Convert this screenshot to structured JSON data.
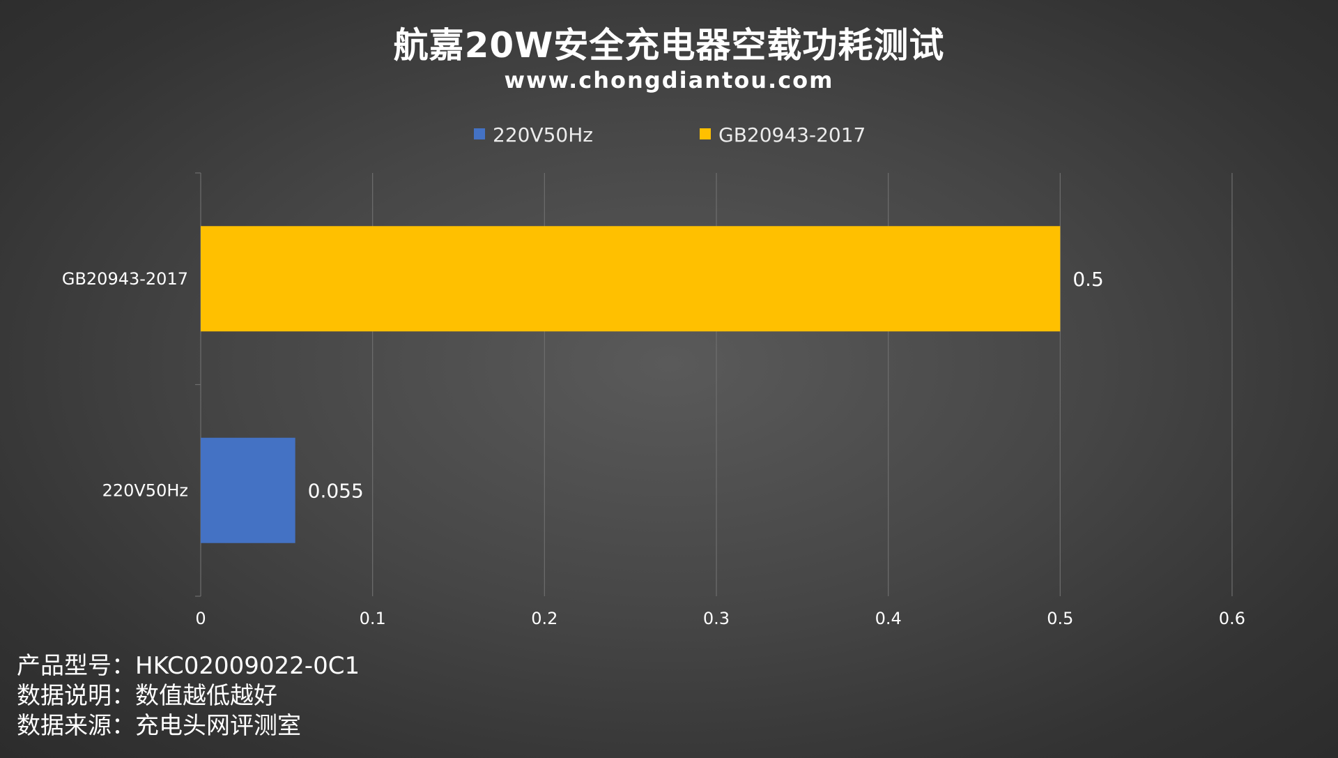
{
  "header": {
    "title": "航嘉20W安全充电器空载功耗测试",
    "subtitle": "www.chongdiantou.com"
  },
  "chart_data": {
    "type": "bar",
    "orientation": "horizontal",
    "categories": [
      "GB20943-2017",
      "220V50Hz"
    ],
    "series": [
      {
        "name": "220V50Hz",
        "color": "#4472c4",
        "values": [
          null,
          0.055
        ]
      },
      {
        "name": "GB20943-2017",
        "color": "#ffc000",
        "values": [
          0.5,
          null
        ]
      }
    ],
    "data_labels": [
      "0.5",
      "0.055"
    ],
    "xlim": [
      0,
      0.6
    ],
    "xticks": [
      "0",
      "0.1",
      "0.2",
      "0.3",
      "0.4",
      "0.5",
      "0.6"
    ],
    "grid": true,
    "legend_position": "top-center",
    "legend": [
      "220V50Hz",
      "GB20943-2017"
    ]
  },
  "footer": {
    "model": "产品型号：HKC02009022-0C1",
    "note": "数据说明：数值越低越好",
    "source": "数据来源：充电头网评测室"
  }
}
